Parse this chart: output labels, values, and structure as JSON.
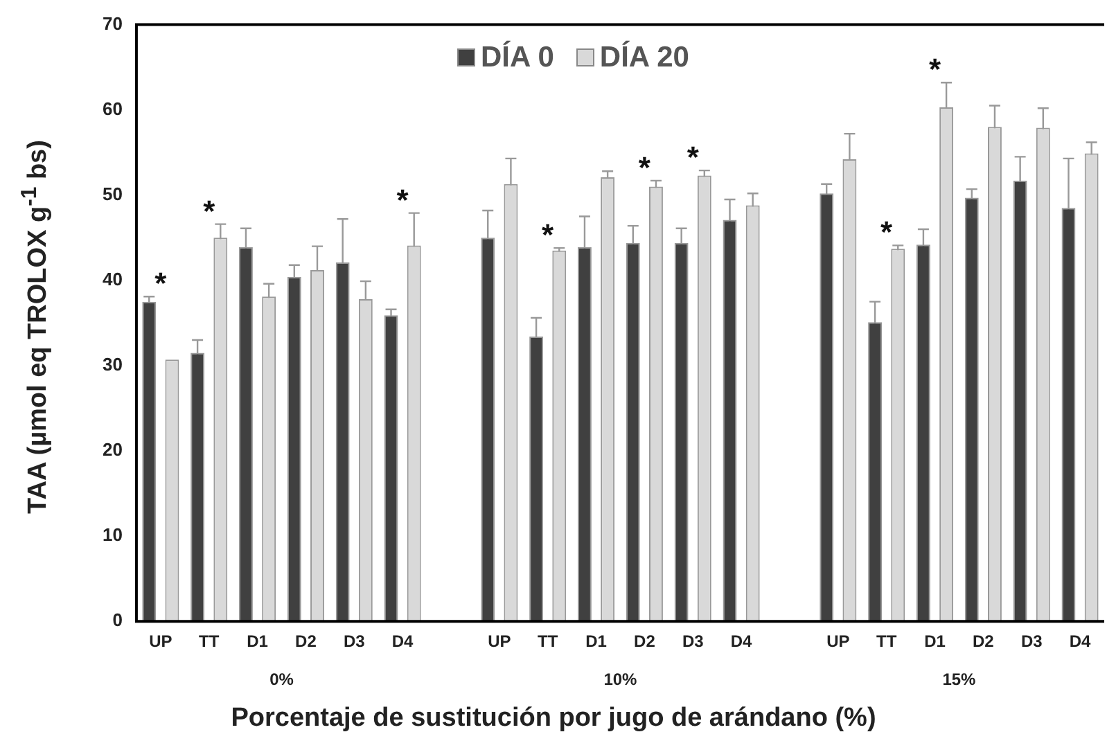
{
  "chart_data": {
    "type": "bar",
    "xlabel": "Porcentaje de sustitución por jugo de arándano (%)",
    "ylabel": "TAA (µmol eq TROLOX g$^{-1}$ bs)",
    "categories": [
      "UP",
      "TT",
      "D1",
      "D2",
      "D3",
      "D4",
      null,
      "UP",
      "TT",
      "D1",
      "D2",
      "D3",
      "D4",
      null,
      "UP",
      "TT",
      "D1",
      "D2",
      "D3",
      "D4"
    ],
    "series": [
      {
        "name": "DÍA 0",
        "color": "#404040",
        "values": [
          37.5,
          31.5,
          43.9,
          40.4,
          42.1,
          35.9,
          null,
          45.0,
          33.4,
          43.9,
          44.4,
          44.4,
          47.1,
          null,
          50.2,
          35.1,
          44.2,
          49.7,
          51.7,
          48.5
        ],
        "errors": [
          0.6,
          1.5,
          2.2,
          1.4,
          5.1,
          0.7,
          null,
          3.2,
          2.2,
          3.6,
          2.0,
          1.7,
          2.4,
          null,
          1.1,
          2.4,
          1.8,
          1.0,
          2.8,
          5.8
        ],
        "value_labels": [
          "*",
          null,
          null,
          null,
          null,
          null,
          null,
          null,
          null,
          null,
          null,
          null,
          null,
          null,
          null,
          null,
          null,
          null,
          null,
          null
        ]
      },
      {
        "name": "DÍA 20",
        "color": "#d9d9d9",
        "values": [
          30.7,
          45.0,
          38.1,
          41.2,
          37.8,
          44.1,
          null,
          51.3,
          43.5,
          52.1,
          51.0,
          52.3,
          48.8,
          null,
          54.2,
          43.7,
          60.3,
          58.0,
          57.9,
          54.9
        ],
        "errors": [
          null,
          1.6,
          1.5,
          2.8,
          2.1,
          3.8,
          null,
          3.0,
          0.3,
          0.7,
          0.7,
          0.6,
          1.4,
          null,
          3.0,
          0.4,
          2.9,
          2.5,
          2.3,
          1.3
        ],
        "value_labels": [
          null,
          "*",
          null,
          null,
          null,
          "*",
          null,
          null,
          "*",
          null,
          "*",
          "*",
          null,
          null,
          null,
          "*",
          "*",
          null,
          null,
          null
        ]
      }
    ],
    "annotations": [
      "0%",
      "10%",
      "15%"
    ],
    "ylim": [
      0,
      70
    ],
    "yticks": [
      0,
      10,
      20,
      30,
      40,
      50,
      60,
      70
    ],
    "grid": false,
    "legend": "top"
  }
}
